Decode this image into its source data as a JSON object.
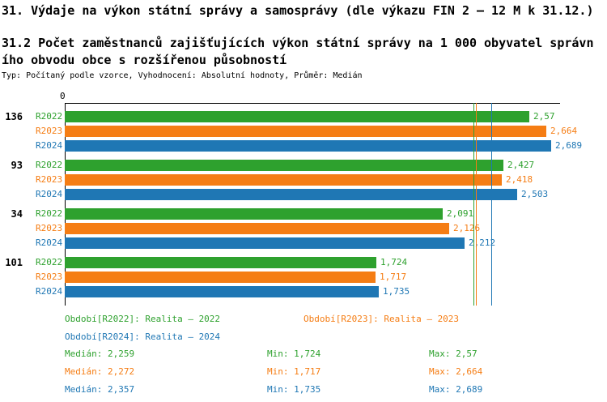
{
  "header": {
    "title": "31. Výdaje na výkon státní správy a samosprávy (dle výkazu FIN 2 – 12 M k 31.12.)",
    "subtitle_line1": "31.2 Počet zaměstnanců zajišťujících výkon státní správy na 1 000 obyvatel správn",
    "subtitle_line2": "ího obvodu obce s rozšířenou působností",
    "meta": "Typ: Počítaný podle vzorce, Vyhodnocení: Absolutní hodnoty, Průměr: Medián"
  },
  "chart_data": {
    "type": "bar",
    "orientation": "horizontal",
    "origin_tick": "0",
    "xlim": [
      0,
      2.77
    ],
    "grid": false,
    "legend_position": "bottom",
    "categories": [
      "136",
      "93",
      "34",
      "101"
    ],
    "series": [
      {
        "name": "R2022",
        "color": "#2ea12e",
        "values": [
          2.57,
          2.427,
          2.091,
          1.724
        ],
        "value_labels": [
          "2,57",
          "2,427",
          "2,091",
          "1,724"
        ],
        "median": 2.259,
        "median_label": "2,259"
      },
      {
        "name": "R2023",
        "color": "#f57d14",
        "values": [
          2.664,
          2.418,
          2.126,
          1.717
        ],
        "value_labels": [
          "2,664",
          "2,418",
          "2,126",
          "1,717"
        ],
        "median": 2.272,
        "median_label": "2,272"
      },
      {
        "name": "R2024",
        "color": "#1f77b4",
        "values": [
          2.689,
          2.503,
          2.212,
          1.735
        ],
        "value_labels": [
          "2,689",
          "2,503",
          "2,212",
          "1,735"
        ],
        "median": 2.357,
        "median_label": "2,357"
      }
    ]
  },
  "legend": {
    "items": [
      {
        "label": "Období[R2022]: Realita – 2022",
        "color": "#2ea12e"
      },
      {
        "label": "Období[R2023]: Realita – 2023",
        "color": "#f57d14"
      },
      {
        "label": "Období[R2024]: Realita – 2024",
        "color": "#1f77b4"
      }
    ]
  },
  "stats": {
    "rows": [
      {
        "median": "Medián: 2,259",
        "min": "Min: 1,724",
        "max": "Max: 2,57",
        "color": "#2ea12e"
      },
      {
        "median": "Medián: 2,272",
        "min": "Min: 1,717",
        "max": "Max: 2,664",
        "color": "#f57d14"
      },
      {
        "median": "Medián: 2,357",
        "min": "Min: 1,735",
        "max": "Max: 2,689",
        "color": "#1f77b4"
      }
    ]
  }
}
